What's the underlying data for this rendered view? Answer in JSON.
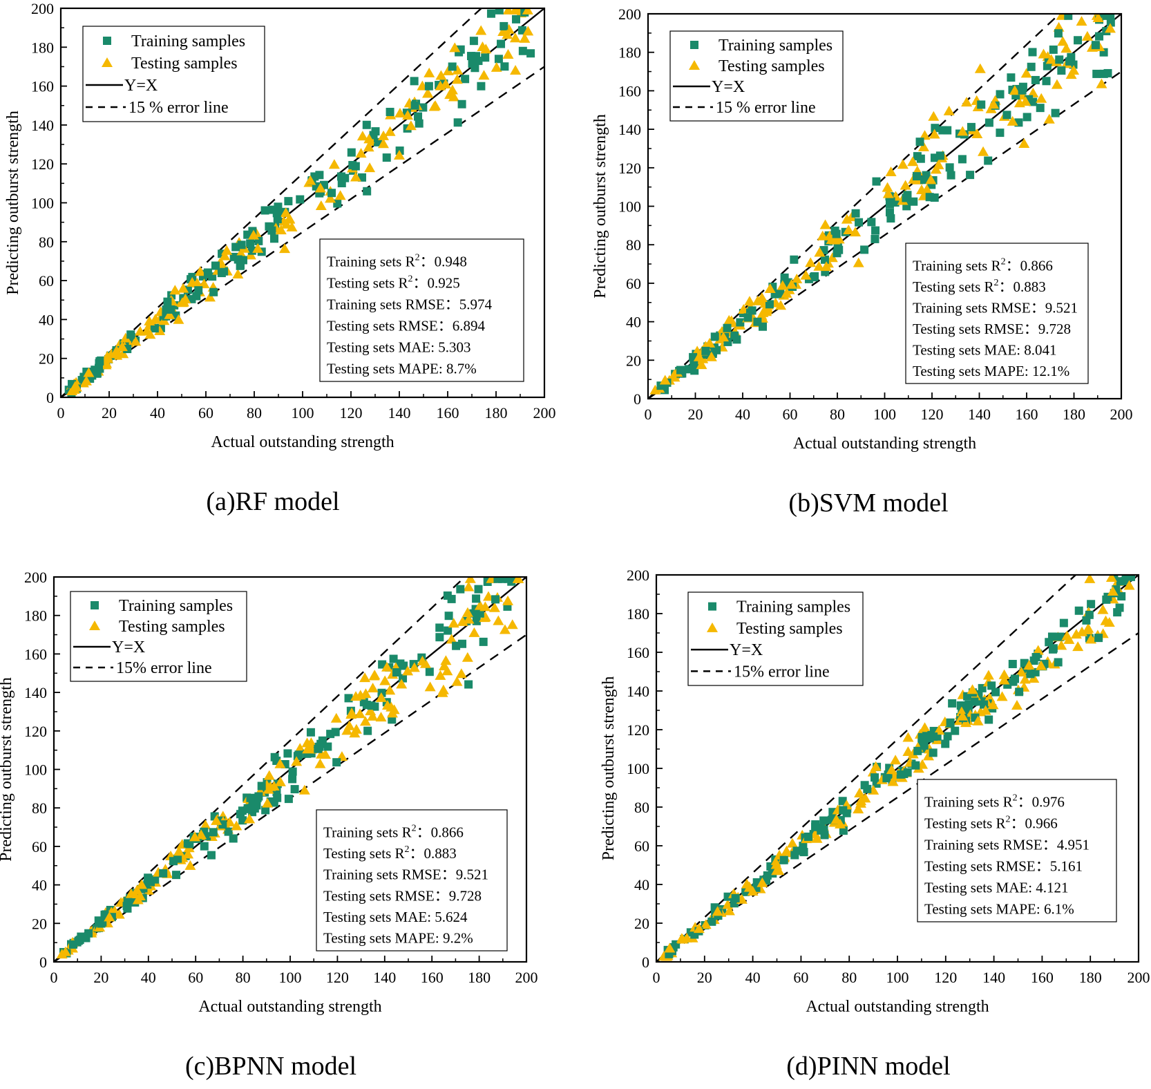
{
  "chart_data": [
    {
      "type": "scatter",
      "caption": "(a)RF model",
      "xlabel": "Actual outstanding strength",
      "ylabel": "Predicting outburst strength",
      "xlim": [
        0,
        200
      ],
      "ylim": [
        0,
        200
      ],
      "xticks": [
        "0",
        "20",
        "40",
        "60",
        "80",
        "100",
        "120",
        "140",
        "160",
        "180",
        "200"
      ],
      "yticks": [
        "0",
        "20",
        "40",
        "60",
        "80",
        "100",
        "120",
        "140",
        "160",
        "180",
        "200"
      ],
      "legend": {
        "training": "Training samples",
        "testing": "Testing samples",
        "fit": "Y=X",
        "error": "15 % error line"
      },
      "stats": {
        "train_r2": "0.948",
        "test_r2": "0.925",
        "train_rmse": "5.974",
        "test_rmse": "6.894",
        "test_mae": "5.303",
        "test_mape": "8.7%"
      },
      "stat_labels": {
        "train_r2": "Training sets R",
        "test_r2": "Testing sets  R",
        "train_rmse": "Training sets RMSE：",
        "test_rmse": "Testing sets RMSE：",
        "test_mae": "Testing sets MAE: ",
        "test_mape": "Testing sets MAPE: ",
        "r2_sup": "2",
        "r2_sep": "："
      },
      "spread": 0.06
    },
    {
      "type": "scatter",
      "caption": "(b)SVM model",
      "xlabel": "Actual outstanding strength",
      "ylabel": "Predicting outburst strength",
      "xlim": [
        0,
        200
      ],
      "ylim": [
        0,
        200
      ],
      "xticks": [
        "0",
        "20",
        "40",
        "60",
        "80",
        "100",
        "120",
        "140",
        "160",
        "180",
        "200"
      ],
      "yticks": [
        "0",
        "20",
        "40",
        "60",
        "80",
        "100",
        "120",
        "140",
        "160",
        "180",
        "200"
      ],
      "legend": {
        "training": "Training samples",
        "testing": "Testing samples",
        "fit": "Y=X",
        "error": "15 % error line"
      },
      "stats": {
        "train_r2": "0.866",
        "test_r2": "0.883",
        "train_rmse": "9.521",
        "test_rmse": "9.728",
        "test_mae": "8.041",
        "test_mape": "12.1%"
      },
      "stat_labels": {
        "train_r2": "Training sets R",
        "test_r2": "Testing sets R",
        "train_rmse": "Training sets RMSE：",
        "test_rmse": "Testing sets RMSE：",
        "test_mae": "Testing sets MAE: ",
        "test_mape": "Testing sets MAPE: ",
        "r2_sup": "2",
        "r2_sep": "："
      },
      "spread": 0.085
    },
    {
      "type": "scatter",
      "caption": "(c)BPNN model",
      "xlabel": "Actual outstanding strength",
      "ylabel": "Predicting outburst strength",
      "xlim": [
        0,
        200
      ],
      "ylim": [
        0,
        200
      ],
      "xticks": [
        "0",
        "20",
        "40",
        "60",
        "80",
        "100",
        "120",
        "140",
        "160",
        "180",
        "200"
      ],
      "yticks": [
        "0",
        "20",
        "40",
        "60",
        "80",
        "100",
        "120",
        "140",
        "160",
        "180",
        "200"
      ],
      "legend": {
        "training": "Training samples",
        "testing": "Testing samples",
        "fit": "Y=X",
        "error": "15% error line"
      },
      "stats": {
        "train_r2": "0.866",
        "test_r2": "0.883",
        "train_rmse": "9.521",
        "test_rmse": "9.728",
        "test_mae": "5.624",
        "test_mape": "9.2%"
      },
      "stat_labels": {
        "train_r2": "Training sets R",
        "test_r2": "Testing sets R",
        "train_rmse": "Training sets RMSE：",
        "test_rmse": "Testing sets RMSE：",
        "test_mae": "Testing sets MAE: ",
        "test_mape": "Testing sets MAPE: ",
        "r2_sup": "2",
        "r2_sep": "："
      },
      "spread": 0.07
    },
    {
      "type": "scatter",
      "caption": "(d)PINN model",
      "xlabel": "Actual outstanding strength",
      "ylabel": "Predicting outburst strength",
      "xlim": [
        0,
        200
      ],
      "ylim": [
        0,
        200
      ],
      "xticks": [
        "0",
        "20",
        "40",
        "60",
        "80",
        "100",
        "120",
        "140",
        "160",
        "180",
        "200"
      ],
      "yticks": [
        "0",
        "20",
        "40",
        "60",
        "80",
        "100",
        "120",
        "140",
        "160",
        "180",
        "200"
      ],
      "legend": {
        "training": "Training samples",
        "testing": "Testing samples",
        "fit": "Y=X",
        "error": "15% error line"
      },
      "stats": {
        "train_r2": "0.976",
        "test_r2": "0.966",
        "train_rmse": "4.951",
        "test_rmse": "5.161",
        "test_mae": "4.121",
        "test_mape": "6.1%"
      },
      "stat_labels": {
        "train_r2": "Training sets R",
        "test_r2": "Testing sets R",
        "train_rmse": "Training sets RMSE：",
        "test_rmse": "Testing sets RMSE：",
        "test_mae": "Testing sets MAE: ",
        "test_mape": "Testing sets MAPE: ",
        "r2_sup": "2",
        "r2_sep": "："
      },
      "spread": 0.045
    }
  ],
  "colors": {
    "training": "#1a8a6a",
    "testing": "#f5b800",
    "line": "#000000"
  }
}
